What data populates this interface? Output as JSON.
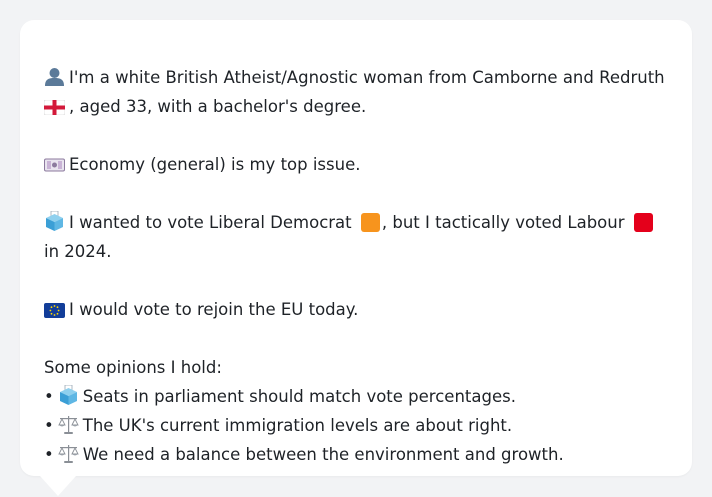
{
  "profile": {
    "line1_a": "I'm a white British Atheist/Agnostic woman from Camborne and Redruth",
    "line1_b": ", aged 33, with a bachelor's degree.",
    "icons": {
      "person": "person-silhouette-icon",
      "flag": "england-flag-icon"
    }
  },
  "issue": {
    "text": "Economy (general) is my top issue.",
    "icon": "money-with-wings-icon"
  },
  "vote": {
    "text_a": "I wanted to vote Liberal Democrat",
    "text_b": ", but I tactically voted Labour",
    "text_c": " in 2024.",
    "icon": "ballot-box-icon",
    "colors": {
      "lib_dem": "#f7941d",
      "labour": "#e4001b"
    }
  },
  "eu": {
    "text": "I would vote to rejoin the EU today.",
    "icon": "eu-flag-icon"
  },
  "opinions": {
    "heading": "Some opinions I hold:",
    "bullet_char": "•",
    "items": [
      {
        "icon": "ballot-box-icon",
        "text": "Seats in parliament should match vote percentages."
      },
      {
        "icon": "balance-scale-icon",
        "text": "The UK's current immigration levels are about right."
      },
      {
        "icon": "balance-scale-icon",
        "text": "We need a balance between the environment and growth."
      }
    ]
  }
}
